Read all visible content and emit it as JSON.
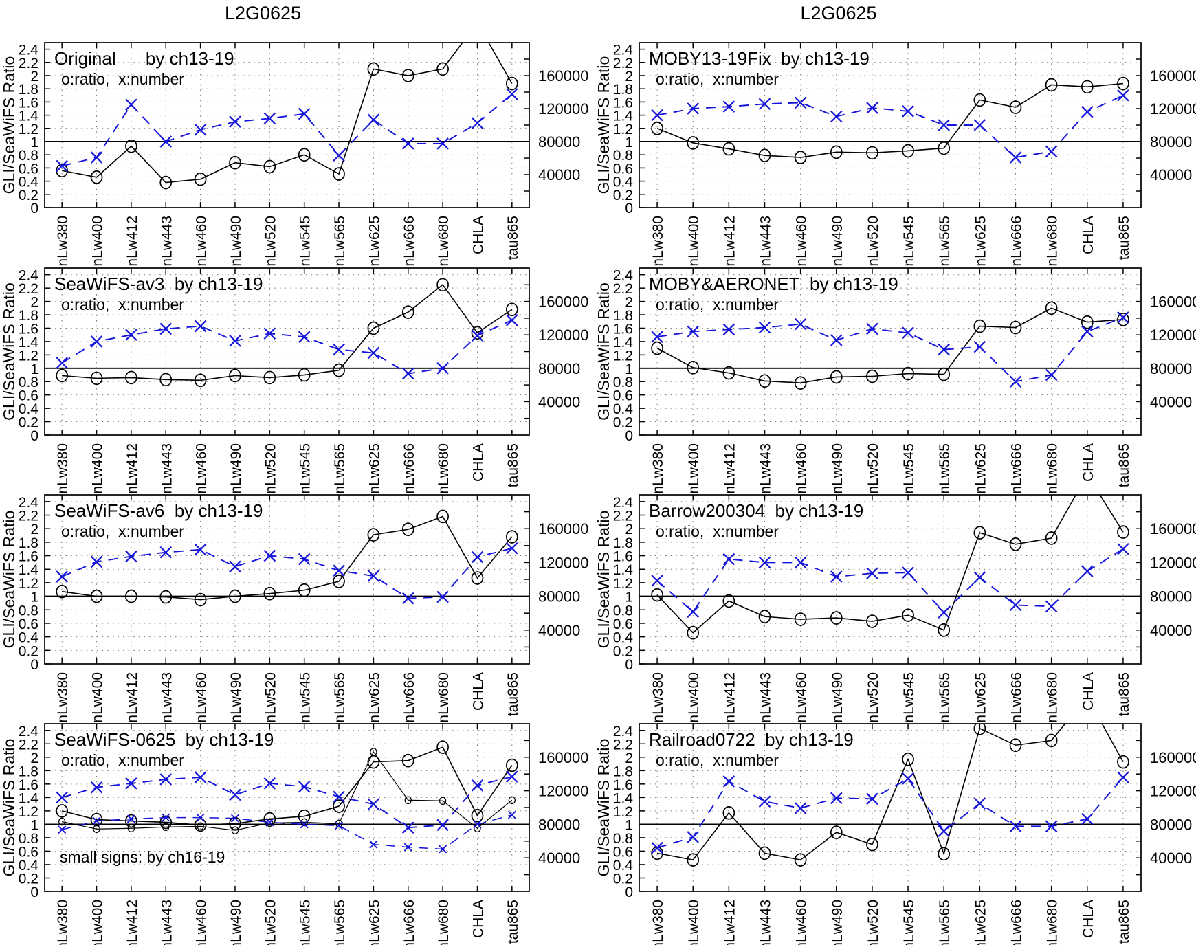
{
  "page": {
    "column_titles": [
      "L2G0625",
      "L2G0625"
    ]
  },
  "axes": {
    "y_label": "GLI/SeaWiFS Ratio",
    "series_legend": "o:ratio,  x:number",
    "left_ticks": [
      "0",
      "0.2",
      "0.4",
      "0.6",
      "0.8",
      "1",
      "1.2",
      "1.4",
      "1.6",
      "1.8",
      "2",
      "2.2",
      "2.4"
    ],
    "right_tick_labels": [
      "160000",
      "120000",
      "80000",
      "40000"
    ],
    "right_tick_ratios": [
      2.0,
      1.5,
      1.0,
      0.5
    ],
    "ylim": [
      0,
      2.5
    ],
    "reference_line": 1.0
  },
  "colors": {
    "ratio": "#000000",
    "number": "#1414dd",
    "grid": "#7a7a7a"
  },
  "categories": [
    "nLw380",
    "nLw400",
    "nLw412",
    "nLw443",
    "nLw460",
    "nLw490",
    "nLw520",
    "nLw545",
    "nLw565",
    "nLw625",
    "nLw666",
    "nLw680",
    "CHLA",
    "tau865"
  ],
  "chart_data": [
    {
      "id": "original",
      "type": "line",
      "col": 0,
      "row": 0,
      "heading": "Original      by ch13‑19",
      "title": "Original",
      "subtitle": "by ch13-19",
      "categories": [
        "nLw380",
        "nLw400",
        "nLw412",
        "nLw443",
        "nLw460",
        "nLw490",
        "nLw520",
        "nLw545",
        "nLw565",
        "nLw625",
        "nLw666",
        "nLw680",
        "CHLA",
        "tau865"
      ],
      "series": [
        {
          "name": "ratio",
          "kind": "ratio",
          "marker": "o",
          "size": "large",
          "values": [
            0.56,
            0.46,
            0.93,
            0.38,
            0.43,
            0.68,
            0.62,
            0.8,
            0.51,
            2.1,
            2.0,
            2.1,
            2.8,
            1.88
          ]
        },
        {
          "name": "number",
          "kind": "number",
          "marker": "x",
          "size": "large",
          "values": [
            0.63,
            0.76,
            1.56,
            1.0,
            1.18,
            1.3,
            1.35,
            1.42,
            0.79,
            1.33,
            0.97,
            0.97,
            1.28,
            1.72
          ]
        }
      ]
    },
    {
      "id": "seawifs-av3",
      "type": "line",
      "col": 0,
      "row": 1,
      "heading": "SeaWiFS‑av3  by ch13‑19",
      "title": "SeaWiFS-av3",
      "subtitle": "by ch13-19",
      "categories": [
        "nLw380",
        "nLw400",
        "nLw412",
        "nLw443",
        "nLw460",
        "nLw490",
        "nLw520",
        "nLw545",
        "nLw565",
        "nLw625",
        "nLw666",
        "nLw680",
        "CHLA",
        "tau865"
      ],
      "series": [
        {
          "name": "ratio",
          "kind": "ratio",
          "marker": "o",
          "size": "large",
          "values": [
            0.89,
            0.85,
            0.86,
            0.83,
            0.82,
            0.89,
            0.86,
            0.9,
            0.97,
            1.6,
            1.84,
            2.25,
            1.53,
            1.88
          ]
        },
        {
          "name": "number",
          "kind": "number",
          "marker": "x",
          "size": "large",
          "values": [
            1.08,
            1.4,
            1.5,
            1.59,
            1.63,
            1.41,
            1.52,
            1.47,
            1.28,
            1.23,
            0.92,
            1.0,
            1.49,
            1.72
          ]
        }
      ]
    },
    {
      "id": "seawifs-av6",
      "type": "line",
      "col": 0,
      "row": 2,
      "heading": "SeaWiFS‑av6  by ch13‑19",
      "title": "SeaWiFS-av6",
      "subtitle": "by ch13-19",
      "categories": [
        "nLw380",
        "nLw400",
        "nLw412",
        "nLw443",
        "nLw460",
        "nLw490",
        "nLw520",
        "nLw545",
        "nLw565",
        "nLw625",
        "nLw666",
        "nLw680",
        "CHLA",
        "tau865"
      ],
      "series": [
        {
          "name": "ratio",
          "kind": "ratio",
          "marker": "o",
          "size": "large",
          "values": [
            1.07,
            1.0,
            1.0,
            0.99,
            0.95,
            1.0,
            1.04,
            1.09,
            1.22,
            1.91,
            1.99,
            2.18,
            1.27,
            1.88
          ]
        },
        {
          "name": "number",
          "kind": "number",
          "marker": "x",
          "size": "large",
          "values": [
            1.29,
            1.51,
            1.59,
            1.65,
            1.69,
            1.44,
            1.6,
            1.55,
            1.38,
            1.3,
            0.97,
            0.99,
            1.58,
            1.71
          ]
        }
      ]
    },
    {
      "id": "seawifs-0625",
      "type": "line",
      "col": 0,
      "row": 3,
      "heading": "SeaWiFS‑0625  by ch13‑19",
      "title": "SeaWiFS-0625",
      "subtitle": "by ch13-19",
      "note": "small signs: by ch16‑19",
      "categories": [
        "nLw380",
        "nLw400",
        "nLw412",
        "nLw443",
        "nLw460",
        "nLw490",
        "nLw520",
        "nLw545",
        "nLw565",
        "nLw625",
        "nLw666",
        "nLw680",
        "CHLA",
        "tau865"
      ],
      "series": [
        {
          "name": "ratio-ch13-19",
          "kind": "ratio",
          "marker": "o",
          "size": "large",
          "values": [
            1.2,
            1.07,
            1.05,
            1.03,
            0.99,
            1.01,
            1.08,
            1.12,
            1.27,
            1.93,
            1.95,
            2.15,
            1.13,
            1.88
          ]
        },
        {
          "name": "number-ch13-19",
          "kind": "number",
          "marker": "x",
          "size": "large",
          "values": [
            1.4,
            1.55,
            1.61,
            1.67,
            1.7,
            1.44,
            1.61,
            1.56,
            1.41,
            1.3,
            0.95,
            0.99,
            1.58,
            1.71
          ]
        },
        {
          "name": "ratio-ch16-19",
          "kind": "ratio",
          "marker": "o",
          "size": "small",
          "values": [
            1.04,
            0.93,
            0.94,
            0.96,
            0.97,
            0.91,
            1.02,
            1.03,
            1.01,
            2.08,
            1.36,
            1.35,
            0.94,
            1.36
          ]
        },
        {
          "name": "number-ch16-19",
          "kind": "number",
          "marker": "x",
          "size": "small",
          "values": [
            0.92,
            1.05,
            1.08,
            1.1,
            1.1,
            1.09,
            1.03,
            1.0,
            0.98,
            0.7,
            0.66,
            0.63,
            1.0,
            1.14
          ]
        }
      ]
    },
    {
      "id": "moby13-19fix",
      "type": "line",
      "col": 1,
      "row": 0,
      "heading": "MOBY13‑19Fix  by ch13‑19",
      "title": "MOBY13-19Fix",
      "subtitle": "by ch13-19",
      "categories": [
        "nLw380",
        "nLw400",
        "nLw412",
        "nLw443",
        "nLw460",
        "nLw490",
        "nLw520",
        "nLw545",
        "nLw565",
        "nLw625",
        "nLw666",
        "nLw680",
        "CHLA",
        "tau865"
      ],
      "series": [
        {
          "name": "ratio",
          "kind": "ratio",
          "marker": "o",
          "size": "large",
          "values": [
            1.2,
            0.98,
            0.89,
            0.79,
            0.76,
            0.84,
            0.83,
            0.86,
            0.9,
            1.63,
            1.52,
            1.86,
            1.83,
            1.88
          ]
        },
        {
          "name": "number",
          "kind": "number",
          "marker": "x",
          "size": "large",
          "values": [
            1.4,
            1.5,
            1.53,
            1.57,
            1.59,
            1.38,
            1.51,
            1.46,
            1.25,
            1.25,
            0.76,
            0.85,
            1.45,
            1.7
          ]
        }
      ]
    },
    {
      "id": "moby-aeronet",
      "type": "line",
      "col": 1,
      "row": 1,
      "heading": "MOBY&AERONET  by ch13‑19",
      "title": "MOBY&AERONET",
      "subtitle": "by ch13-19",
      "categories": [
        "nLw380",
        "nLw400",
        "nLw412",
        "nLw443",
        "nLw460",
        "nLw490",
        "nLw520",
        "nLw545",
        "nLw565",
        "nLw625",
        "nLw666",
        "nLw680",
        "CHLA",
        "tau865"
      ],
      "series": [
        {
          "name": "ratio",
          "kind": "ratio",
          "marker": "o",
          "size": "large",
          "values": [
            1.3,
            1.01,
            0.93,
            0.81,
            0.78,
            0.87,
            0.88,
            0.92,
            0.91,
            1.63,
            1.61,
            1.9,
            1.69,
            1.73
          ]
        },
        {
          "name": "number",
          "kind": "number",
          "marker": "x",
          "size": "large",
          "values": [
            1.47,
            1.55,
            1.58,
            1.61,
            1.66,
            1.42,
            1.59,
            1.53,
            1.28,
            1.32,
            0.8,
            0.9,
            1.55,
            1.76
          ]
        }
      ]
    },
    {
      "id": "barrow200304",
      "type": "line",
      "col": 1,
      "row": 2,
      "heading": "Barrow200304  by ch13‑19",
      "title": "Barrow200304",
      "subtitle": "by ch13-19",
      "categories": [
        "nLw380",
        "nLw400",
        "nLw412",
        "nLw443",
        "nLw460",
        "nLw490",
        "nLw520",
        "nLw545",
        "nLw565",
        "nLw625",
        "nLw666",
        "nLw680",
        "CHLA",
        "tau865"
      ],
      "series": [
        {
          "name": "ratio",
          "kind": "ratio",
          "marker": "o",
          "size": "large",
          "values": [
            1.02,
            0.46,
            0.93,
            0.7,
            0.66,
            0.68,
            0.63,
            0.72,
            0.5,
            1.94,
            1.77,
            1.86,
            2.8,
            1.95
          ]
        },
        {
          "name": "number",
          "kind": "number",
          "marker": "x",
          "size": "large",
          "values": [
            1.23,
            0.77,
            1.55,
            1.5,
            1.5,
            1.29,
            1.34,
            1.35,
            0.76,
            1.28,
            0.87,
            0.85,
            1.37,
            1.7
          ]
        }
      ]
    },
    {
      "id": "railroad0722",
      "type": "line",
      "col": 1,
      "row": 3,
      "heading": "Railroad0722  by ch13‑19",
      "title": "Railroad0722",
      "subtitle": "by ch13-19",
      "categories": [
        "nLw380",
        "nLw400",
        "nLw412",
        "nLw443",
        "nLw460",
        "nLw490",
        "nLw520",
        "nLw545",
        "nLw565",
        "nLw625",
        "nLw666",
        "nLw680",
        "CHLA",
        "tau865"
      ],
      "series": [
        {
          "name": "ratio",
          "kind": "ratio",
          "marker": "o",
          "size": "large",
          "values": [
            0.57,
            0.47,
            1.17,
            0.57,
            0.47,
            0.88,
            0.7,
            1.97,
            0.56,
            2.43,
            2.18,
            2.25,
            2.9,
            1.93
          ]
        },
        {
          "name": "number",
          "kind": "number",
          "marker": "x",
          "size": "large",
          "values": [
            0.65,
            0.81,
            1.64,
            1.34,
            1.24,
            1.39,
            1.38,
            1.68,
            0.9,
            1.31,
            0.97,
            0.97,
            1.08,
            1.7
          ]
        }
      ]
    }
  ]
}
